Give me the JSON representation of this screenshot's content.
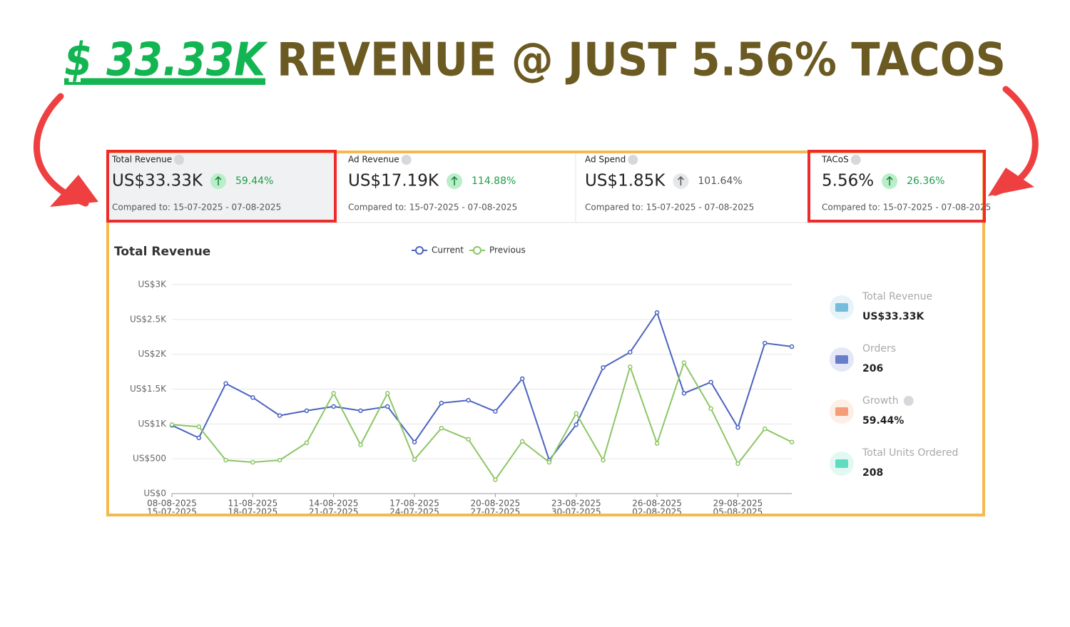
{
  "header": {
    "highlight": "$ 33.33K",
    "title": "REVENUE @ JUST 5.56% TACOS"
  },
  "kpis": [
    {
      "label": "Total Revenue",
      "value": "US$33.33K",
      "change": "59.44%",
      "color": "#1e9e4a",
      "compared": "Compared to: 15-07-2025 - 07-08-2025"
    },
    {
      "label": "Ad Revenue",
      "value": "US$17.19K",
      "change": "114.88%",
      "color": "#1e9e4a",
      "compared": "Compared to: 15-07-2025 - 07-08-2025"
    },
    {
      "label": "Ad Spend",
      "value": "US$1.85K",
      "change": "101.64%",
      "color": "#555555",
      "compared": "Compared to: 15-07-2025 - 07-08-2025"
    },
    {
      "label": "TACoS",
      "value": "5.56%",
      "change": "26.36%",
      "color": "#1e9e4a",
      "compared": "Compared to: 15-07-2025 - 07-08-2025"
    }
  ],
  "chart_data": {
    "type": "line",
    "title": "Total Revenue",
    "categories": [
      "08-08-2025",
      null,
      null,
      "11-08-2025",
      null,
      null,
      "14-08-2025",
      null,
      null,
      "17-08-2025",
      null,
      null,
      "20-08-2025",
      null,
      null,
      "23-08-2025",
      null,
      null,
      "26-08-2025",
      null,
      null,
      "29-08-2025",
      null,
      null
    ],
    "categories_previous": [
      "15-07-2025",
      null,
      null,
      "18-07-2025",
      null,
      null,
      "21-07-2025",
      null,
      null,
      "24-07-2025",
      null,
      null,
      "27-07-2025",
      null,
      null,
      "30-07-2025",
      null,
      null,
      "02-08-2025",
      null,
      null,
      "05-08-2025",
      null,
      null
    ],
    "series": [
      {
        "name": "Current",
        "color": "#4a63c0",
        "values": [
          980,
          800,
          1580,
          1380,
          1120,
          1190,
          1250,
          1190,
          1250,
          740,
          1300,
          1340,
          1180,
          1650,
          480,
          990,
          1810,
          2030,
          2600,
          1440,
          1600,
          950,
          2160,
          2110
        ]
      },
      {
        "name": "Previous",
        "color": "#8cc665",
        "values": [
          990,
          960,
          480,
          450,
          480,
          730,
          1440,
          700,
          1440,
          490,
          940,
          780,
          200,
          750,
          450,
          1150,
          480,
          1820,
          720,
          1880,
          1220,
          430,
          930,
          740
        ]
      }
    ],
    "ylim": [
      0,
      3000
    ],
    "yticks": [
      {
        "value": 0,
        "label": "US$0"
      },
      {
        "value": 500,
        "label": "US$500"
      },
      {
        "value": 1000,
        "label": "US$1K"
      },
      {
        "value": 1500,
        "label": "US$1.5K"
      },
      {
        "value": 2000,
        "label": "US$2K"
      },
      {
        "value": 2500,
        "label": "US$2.5K"
      },
      {
        "value": 3000,
        "label": "US$3K"
      }
    ],
    "grid": true
  },
  "stats": [
    {
      "label": "Total Revenue",
      "value": "US$33.33K",
      "color": "#5aaed6"
    },
    {
      "label": "Orders",
      "value": "206",
      "color": "#4a63c0"
    },
    {
      "label": "Growth",
      "value": "59.44%",
      "color": "#f08a5a"
    },
    {
      "label": "Total Units Ordered",
      "value": "208",
      "color": "#3fd6b0"
    }
  ]
}
